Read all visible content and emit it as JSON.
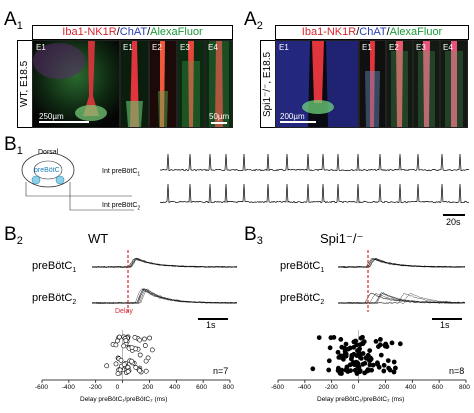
{
  "panels": {
    "A1": {
      "label": "A",
      "sub": "1",
      "title": {
        "part1": "Iba1-NK1R",
        "sep1": "/",
        "part2": "ChAT",
        "sep2": "/",
        "part3": "AlexaFluor"
      },
      "side_label": "WT, E18.5",
      "tiles": [
        "E1",
        "E1",
        "E2",
        "E3",
        "E4"
      ],
      "scale_main": "250µm",
      "scale_small": "50µm"
    },
    "A2": {
      "label": "A",
      "sub": "2",
      "title": {
        "part1": "Iba1-NK1R",
        "sep1": "/",
        "part2": "ChAT",
        "sep2": "/",
        "part3": "AlexaFluor"
      },
      "side_label": "Spi1⁻/⁻, E18.5",
      "tiles": [
        "E1",
        "E1",
        "E2",
        "E3",
        "E4"
      ],
      "scale_main": "200µm"
    },
    "B1": {
      "label": "B",
      "sub": "1",
      "dorsal": "Dorsal",
      "prebotc": "preBötC",
      "trace1": "Int preBötC",
      "trace1_sub": "1",
      "trace2": "Int preBötC",
      "trace2_sub": "2",
      "scale": "20s"
    },
    "B2": {
      "label": "B",
      "sub": "2",
      "condition": "WT",
      "trace1": "preBötC",
      "trace1_sub": "1",
      "trace2": "preBötC",
      "trace2_sub": "2",
      "delay": "Delay",
      "scale": "1s",
      "n": "n=7",
      "xaxis_label": "Delay preBötC₁/preBötC₂ (ms)",
      "ticks": [
        "-600",
        "-400",
        "-200",
        "0",
        "200",
        "400",
        "600",
        "800"
      ]
    },
    "B3": {
      "label": "B",
      "sub": "3",
      "condition": "Spi1⁻/⁻",
      "trace1": "preBötC",
      "trace1_sub": "1",
      "trace2": "preBötC",
      "trace2_sub": "2",
      "scale": "1s",
      "n": "n=8",
      "xaxis_label": "Delay preBötC₁/preBötC₂ (ms)",
      "ticks": [
        "-600",
        "-400",
        "-200",
        "0",
        "200",
        "400",
        "600",
        "800"
      ]
    }
  },
  "colors": {
    "red": "#d8262e",
    "blue": "#2a3fb8",
    "green": "#1b9a3a",
    "delay_line": "#d8262e"
  }
}
